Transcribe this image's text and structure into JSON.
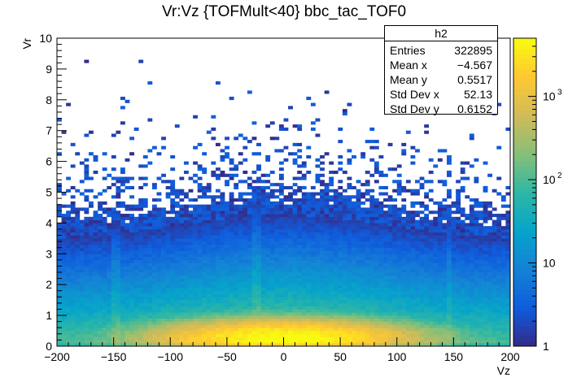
{
  "chart_data": {
    "type": "heatmap",
    "title": "Vr:Vz {TOFMult<40} bbc_tac_TOF0",
    "xlabel": "Vz",
    "ylabel": "Vr",
    "xlim": [
      -200,
      200
    ],
    "ylim": [
      0,
      10
    ],
    "x_ticks": [
      "−200",
      "−150",
      "−100",
      "−50",
      "0",
      "50",
      "100",
      "150",
      "200"
    ],
    "y_ticks": [
      "0",
      "1",
      "2",
      "3",
      "4",
      "5",
      "6",
      "7",
      "8",
      "9",
      "10"
    ],
    "z_scale": "log",
    "z_ticks": [
      "1",
      "10",
      "10",
      "10"
    ],
    "z_tick_exponents": [
      "",
      "",
      "2",
      "3"
    ],
    "z_tick_values": [
      1,
      10,
      100,
      1000
    ],
    "z_range": [
      1,
      5000
    ],
    "palette": [
      "#352a87",
      "#0f5cdd",
      "#1481d6",
      "#06a4ca",
      "#2eb7a4",
      "#87bf77",
      "#d1bb59",
      "#fec832",
      "#f9fb0e"
    ],
    "stats": {
      "name": "h2",
      "entries_label": "Entries",
      "entries": "322895",
      "mean_x_label": "Mean x",
      "mean_x": "−4.567",
      "mean_y_label": "Mean y",
      "mean_y": "0.5517",
      "std_x_label": "Std Dev x",
      "std_x": "52.13",
      "std_y_label": "Std Dev y",
      "std_y": "0.6152"
    },
    "bins_x": 100,
    "bins_y": 100
  }
}
